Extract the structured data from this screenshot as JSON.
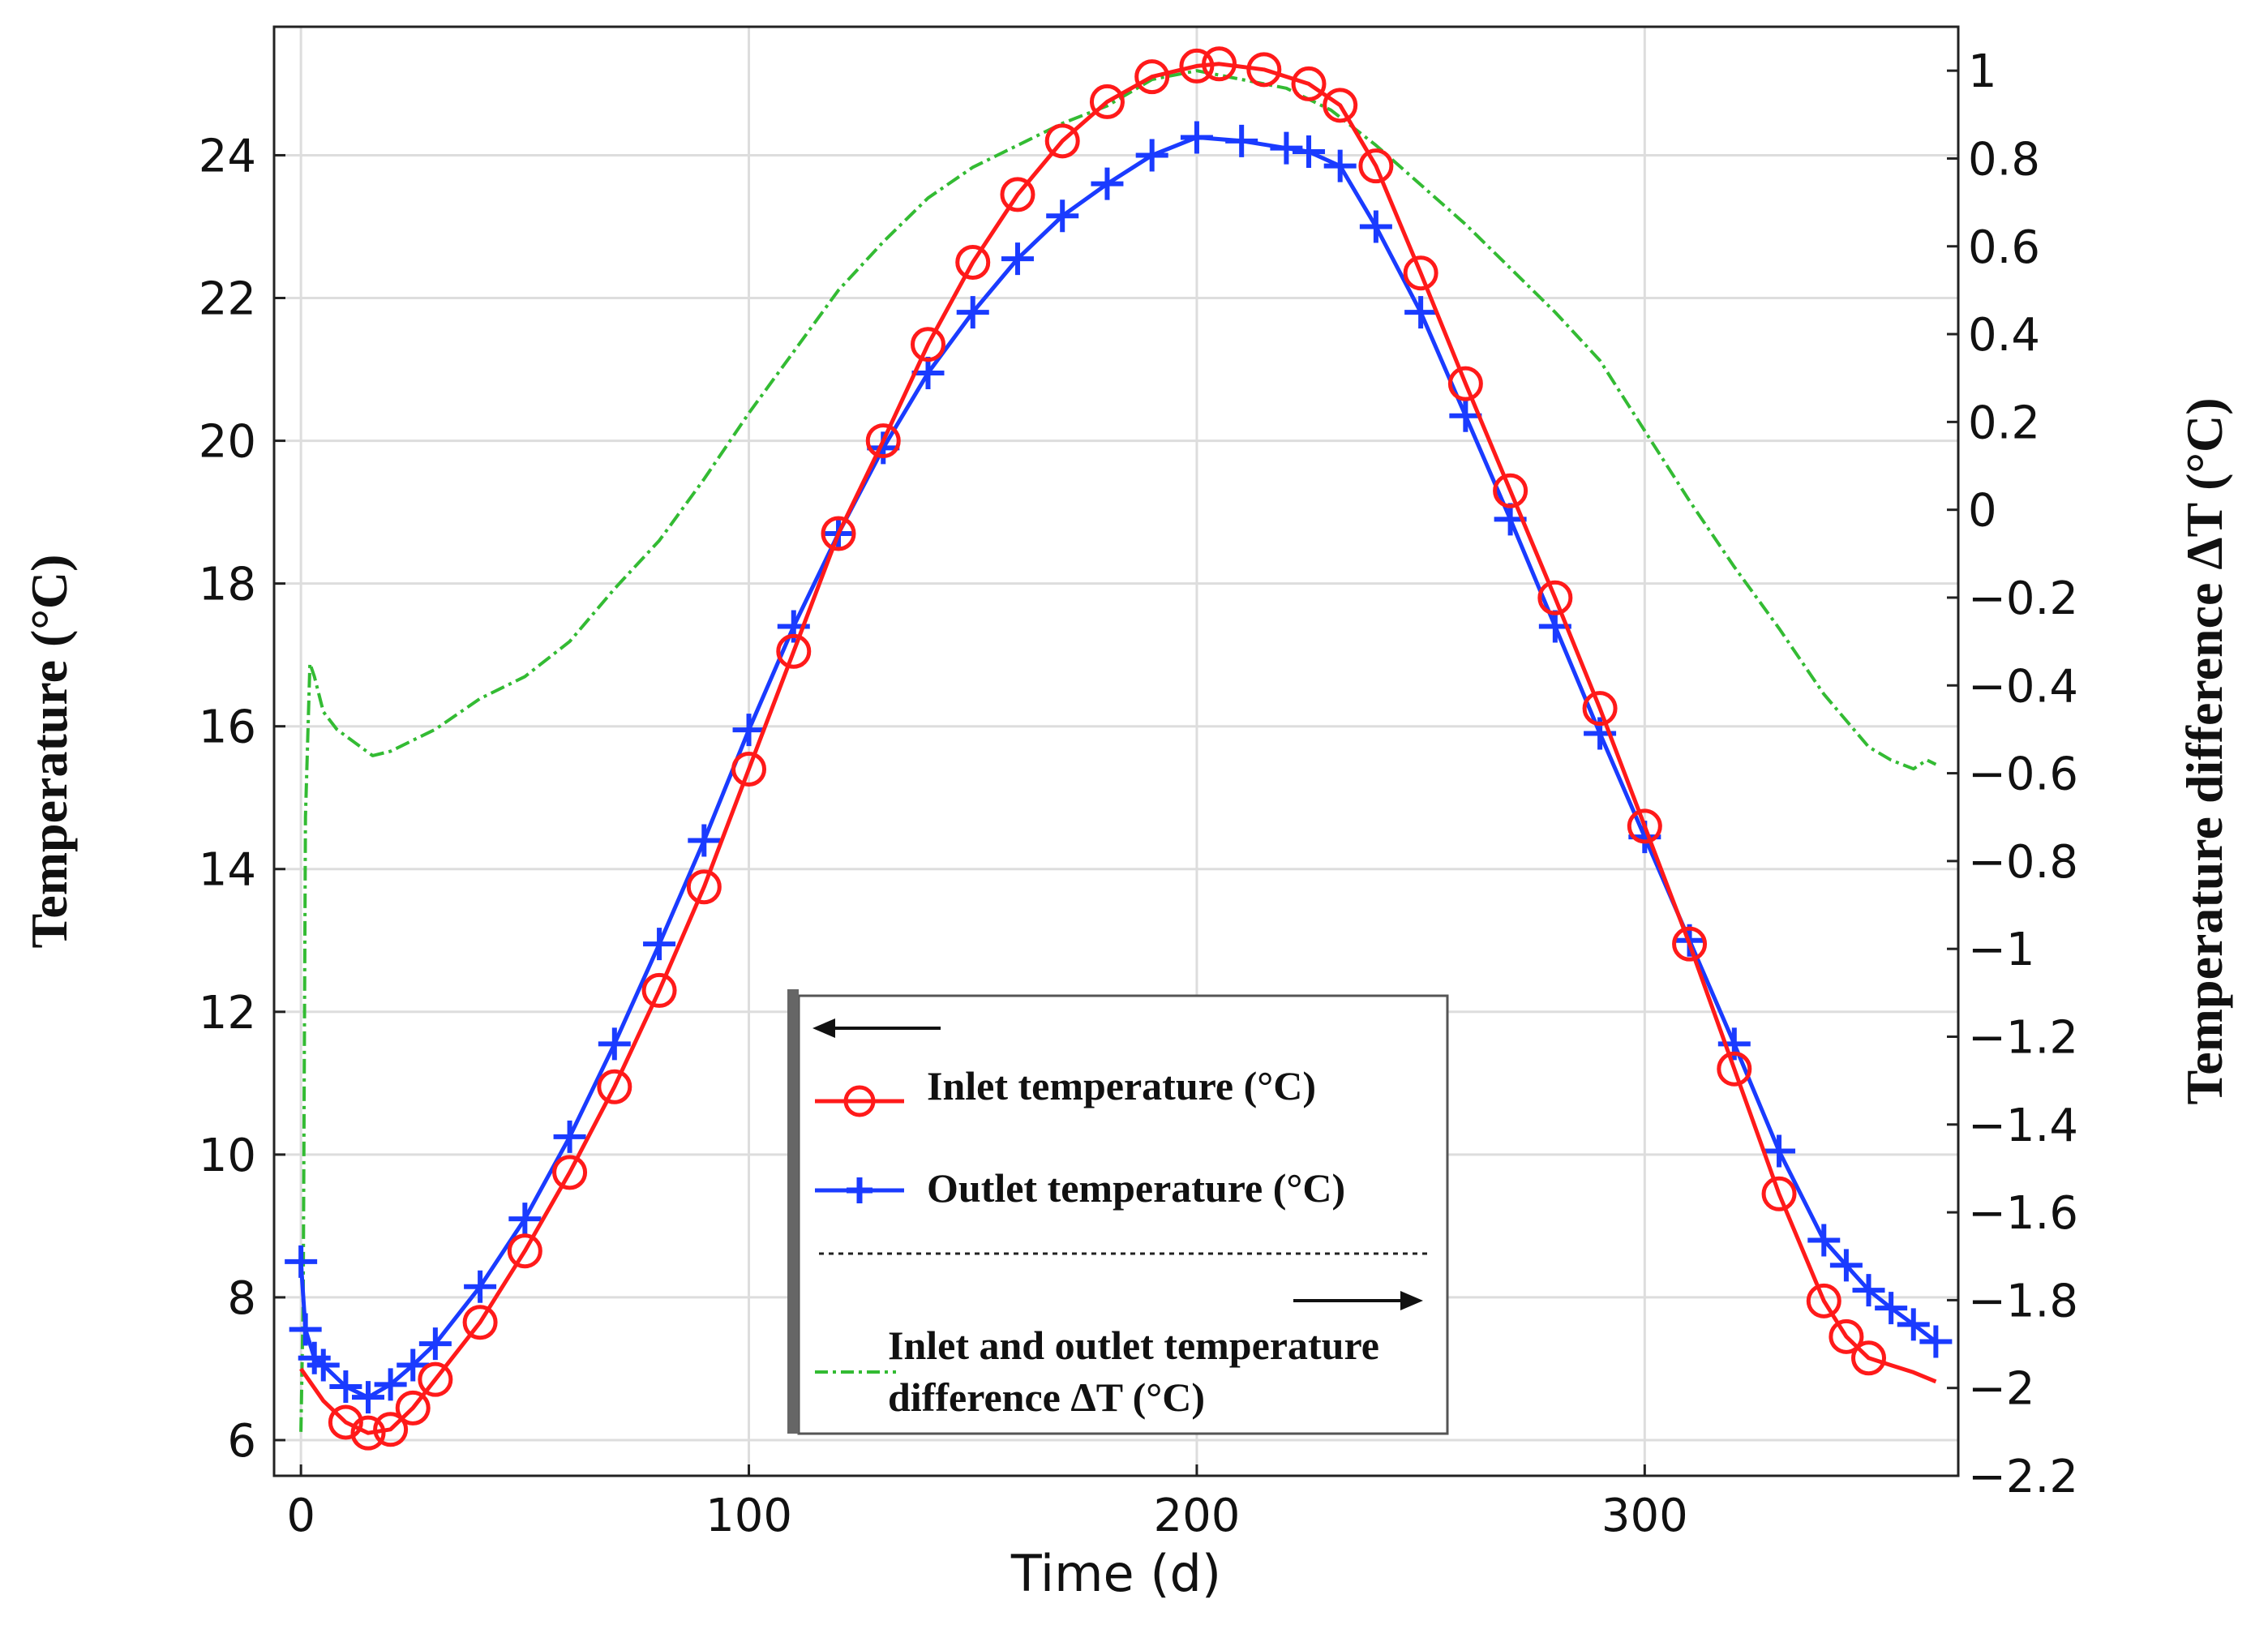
{
  "chart_data": {
    "type": "line",
    "title": "",
    "xlabel": "Time (d)",
    "ylabel": "Temperature (°C)",
    "y2label": "Temperature difference ΔT (°C)",
    "xlim": [
      -6,
      370
    ],
    "ylim": [
      5.5,
      25.8
    ],
    "y2lim": [
      -2.2,
      1.1
    ],
    "x_ticks": [
      0,
      100,
      200,
      300
    ],
    "y_ticks": [
      6,
      8,
      10,
      12,
      14,
      16,
      18,
      20,
      22,
      24
    ],
    "y2_ticks": [
      -2.2,
      -2,
      -1.8,
      -1.6,
      -1.4,
      -1.2,
      -1,
      -0.8,
      -0.6,
      -0.4,
      -0.2,
      0,
      0.2,
      0.4,
      0.6,
      0.8,
      1
    ],
    "grid": true,
    "legend": {
      "position": "bottom-center",
      "left_arrow": "←",
      "right_arrow": "→"
    },
    "series": [
      {
        "name": "Inlet temperature (°C)",
        "axis": "left",
        "color": "#ff1a1a",
        "marker": "circle",
        "x": [
          0,
          5,
          10,
          15,
          20,
          25,
          30,
          40,
          50,
          60,
          70,
          80,
          90,
          100,
          110,
          120,
          130,
          140,
          150,
          160,
          170,
          180,
          190,
          200,
          205,
          215,
          225,
          232,
          240,
          250,
          260,
          270,
          280,
          290,
          300,
          310,
          320,
          330,
          340,
          345,
          350,
          355,
          360,
          365
        ],
        "values": [
          7.0,
          6.55,
          6.25,
          6.1,
          6.15,
          6.45,
          6.85,
          7.65,
          8.65,
          9.75,
          10.95,
          12.3,
          13.75,
          15.4,
          17.05,
          18.7,
          20.0,
          21.35,
          22.5,
          23.45,
          24.2,
          24.75,
          25.1,
          25.25,
          25.28,
          25.2,
          25.0,
          24.7,
          23.85,
          22.35,
          20.8,
          19.3,
          17.8,
          16.25,
          14.6,
          12.95,
          11.2,
          9.45,
          7.95,
          7.45,
          7.15,
          7.05,
          6.95,
          6.82
        ]
      },
      {
        "name": "Outlet temperature (°C)",
        "axis": "left",
        "color": "#1a3bff",
        "marker": "plus",
        "x": [
          0,
          1,
          3,
          5,
          10,
          15,
          20,
          25,
          30,
          40,
          50,
          60,
          70,
          80,
          90,
          100,
          110,
          120,
          130,
          140,
          150,
          160,
          170,
          180,
          190,
          200,
          210,
          220,
          225,
          232,
          240,
          250,
          260,
          270,
          280,
          290,
          300,
          310,
          320,
          330,
          340,
          345,
          350,
          355,
          360,
          365
        ],
        "values": [
          8.5,
          7.55,
          7.15,
          7.05,
          6.75,
          6.6,
          6.78,
          7.05,
          7.35,
          8.15,
          9.1,
          10.25,
          11.55,
          12.95,
          14.4,
          15.95,
          17.4,
          18.7,
          19.9,
          20.95,
          21.8,
          22.55,
          23.15,
          23.6,
          24.0,
          24.25,
          24.2,
          24.1,
          24.05,
          23.85,
          23.0,
          21.8,
          20.35,
          18.9,
          17.4,
          15.9,
          14.45,
          13.0,
          11.55,
          10.05,
          8.8,
          8.45,
          8.1,
          7.85,
          7.62,
          7.38
        ]
      },
      {
        "name": "Inlet and outlet temperature difference ΔT (°C)",
        "axis": "right",
        "color": "#33bb33",
        "marker": "dash-dot",
        "x": [
          0,
          0.5,
          1,
          2,
          3,
          5,
          8,
          12,
          16,
          20,
          30,
          40,
          50,
          60,
          70,
          80,
          90,
          100,
          110,
          120,
          130,
          140,
          150,
          160,
          170,
          180,
          190,
          200,
          210,
          220,
          230,
          240,
          250,
          260,
          270,
          280,
          290,
          300,
          310,
          320,
          330,
          340,
          350,
          355,
          360,
          363,
          365
        ],
        "values": [
          -2.1,
          -1.8,
          -0.7,
          -0.35,
          -0.38,
          -0.46,
          -0.5,
          -0.53,
          -0.56,
          -0.55,
          -0.5,
          -0.43,
          -0.38,
          -0.3,
          -0.18,
          -0.07,
          0.07,
          0.22,
          0.36,
          0.5,
          0.61,
          0.71,
          0.78,
          0.83,
          0.88,
          0.92,
          0.98,
          1.0,
          0.98,
          0.96,
          0.91,
          0.83,
          0.74,
          0.65,
          0.55,
          0.45,
          0.34,
          0.18,
          0.02,
          -0.13,
          -0.27,
          -0.42,
          -0.54,
          -0.57,
          -0.59,
          -0.57,
          -0.58
        ]
      }
    ]
  }
}
